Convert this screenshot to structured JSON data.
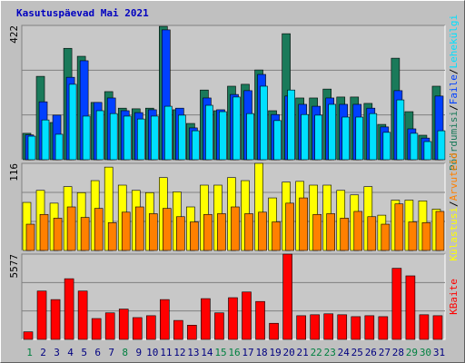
{
  "title": "Kasutuspäevad Mai 2021",
  "legend_separator": "/",
  "chart_data": [
    {
      "type": "bar",
      "ylim": [
        0,
        422
      ],
      "yticks": [
        422
      ],
      "grid": true,
      "series": [
        {
          "name": "Pöördumisi",
          "color": "#1a7a5a",
          "values": [
            83,
            262,
            117,
            350,
            325,
            180,
            214,
            162,
            160,
            162,
            419,
            157,
            114,
            219,
            154,
            231,
            237,
            282,
            154,
            396,
            194,
            194,
            222,
            197,
            197,
            177,
            111,
            319,
            151,
            77,
            231
          ]
        },
        {
          "name": "Faile",
          "color": "#0040ff",
          "values": [
            78,
            182,
            140,
            259,
            311,
            180,
            194,
            154,
            148,
            157,
            408,
            162,
            100,
            194,
            157,
            205,
            217,
            268,
            142,
            200,
            174,
            168,
            194,
            174,
            174,
            162,
            103,
            217,
            97,
            68,
            200
          ]
        },
        {
          "name": "Lehekülgi",
          "color": "#00e0ff",
          "values": [
            74,
            125,
            80,
            237,
            137,
            154,
            145,
            137,
            128,
            137,
            168,
            140,
            91,
            171,
            151,
            197,
            145,
            231,
            123,
            219,
            142,
            140,
            174,
            134,
            134,
            145,
            86,
            188,
            83,
            57,
            91
          ]
        }
      ]
    },
    {
      "type": "bar",
      "ylim": [
        0,
        116
      ],
      "yticks": [
        116
      ],
      "grid": true,
      "series": [
        {
          "name": "Külastusi",
          "color": "#ffff00",
          "values": [
            64,
            80,
            63,
            85,
            77,
            93,
            111,
            87,
            80,
            77,
            97,
            78,
            58,
            87,
            87,
            97,
            93,
            116,
            70,
            91,
            92,
            87,
            87,
            80,
            74,
            85,
            47,
            67,
            67,
            66,
            55
          ]
        },
        {
          "name": "Arvuteid",
          "color": "#ff8000",
          "values": [
            35,
            48,
            43,
            58,
            44,
            56,
            37,
            51,
            58,
            49,
            56,
            45,
            38,
            48,
            49,
            58,
            49,
            51,
            38,
            63,
            70,
            48,
            49,
            43,
            52,
            45,
            35,
            62,
            38,
            37,
            52
          ]
        }
      ]
    },
    {
      "type": "bar",
      "ylim": [
        0,
        5577
      ],
      "yticks": [
        5577
      ],
      "grid": true,
      "categories": [
        "1",
        "2",
        "3",
        "4",
        "5",
        "6",
        "7",
        "8",
        "9",
        "10",
        "11",
        "12",
        "13",
        "14",
        "15",
        "16",
        "17",
        "18",
        "19",
        "20",
        "21",
        "22",
        "23",
        "24",
        "25",
        "26",
        "27",
        "28",
        "29",
        "30",
        "31"
      ],
      "category_colors": [
        "#008040",
        "#000080",
        "#000080",
        "#000080",
        "#000080",
        "#000080",
        "#000080",
        "#008040",
        "#000080",
        "#000080",
        "#000080",
        "#000080",
        "#000080",
        "#000080",
        "#008040",
        "#008040",
        "#000080",
        "#000080",
        "#000080",
        "#000080",
        "#000080",
        "#008040",
        "#008040",
        "#000080",
        "#000080",
        "#000080",
        "#000080",
        "#000080",
        "#008040",
        "#008040",
        "#000080"
      ],
      "series": [
        {
          "name": "KBaite",
          "color": "#ff0000",
          "values": [
            496,
            3162,
            2604,
            3968,
            3162,
            1364,
            1736,
            1984,
            1426,
            1550,
            2604,
            1240,
            930,
            2666,
            1736,
            2728,
            3100,
            2480,
            1054,
            5577,
            1550,
            1612,
            1674,
            1612,
            1488,
            1550,
            1488,
            4650,
            4154,
            1612,
            1550
          ]
        }
      ]
    }
  ]
}
